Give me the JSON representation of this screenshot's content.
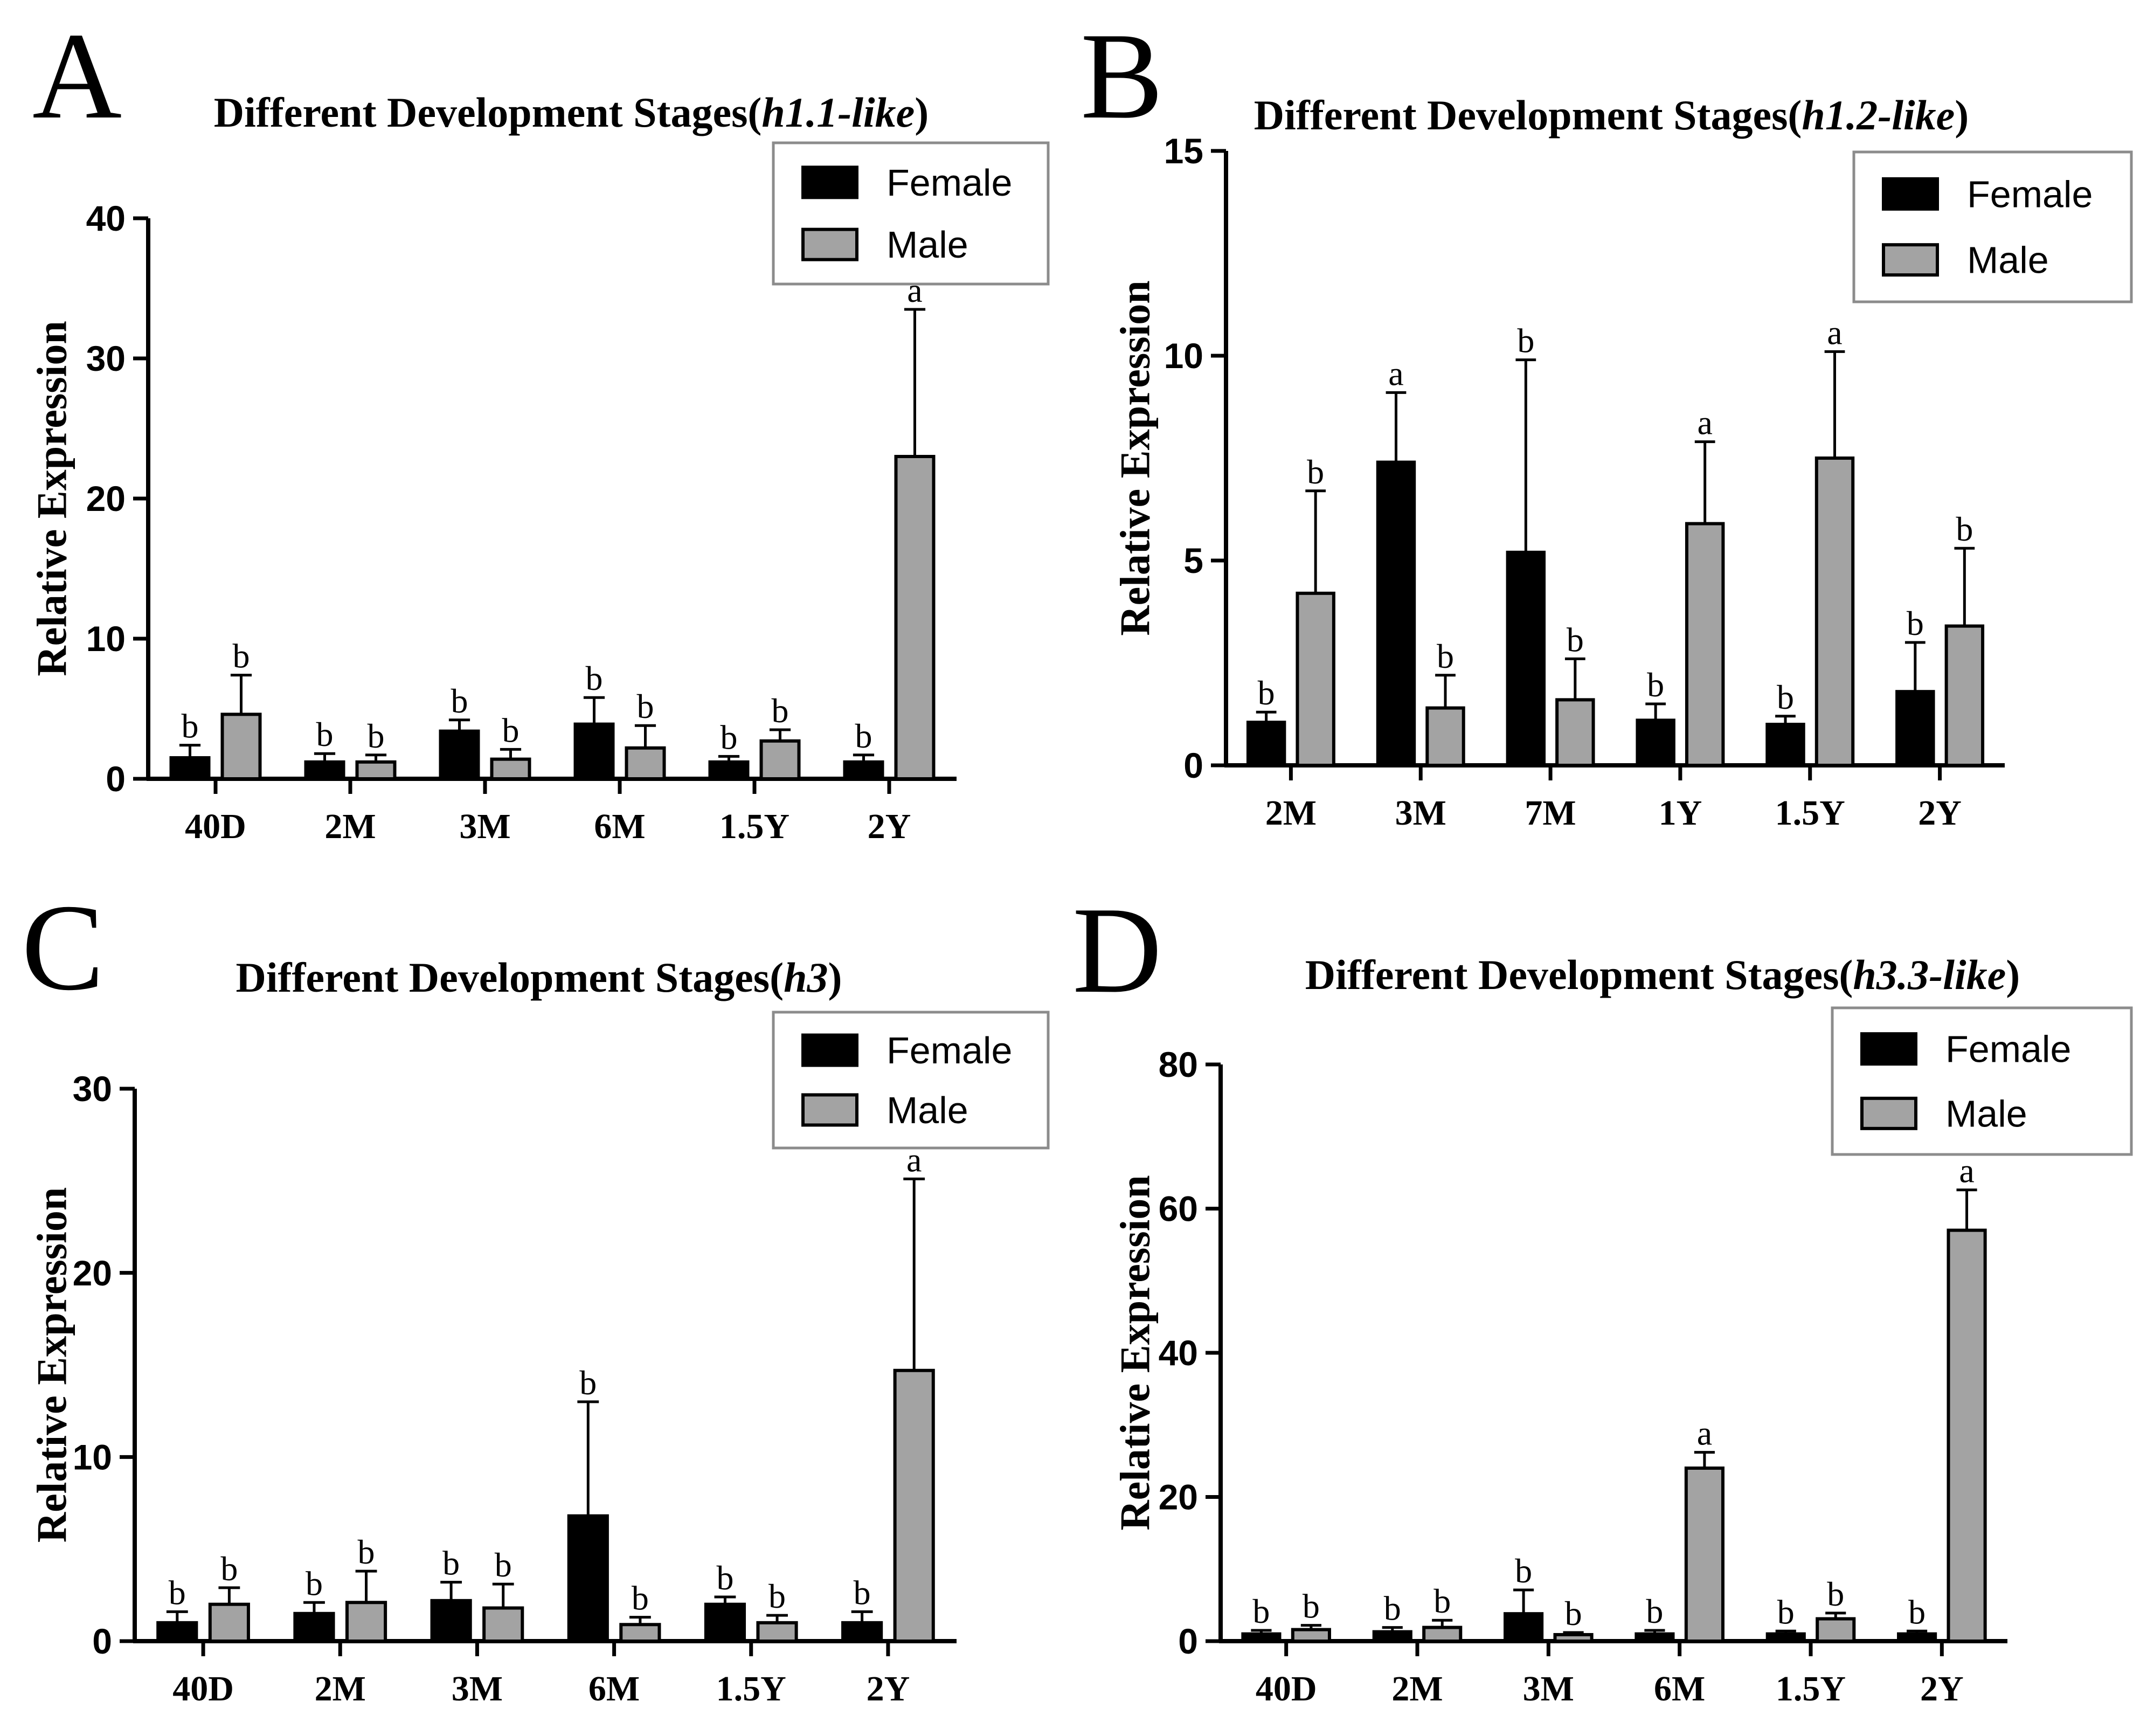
{
  "colors": {
    "female": "#000000",
    "male": "#a3a3a3",
    "axis": "#000000",
    "legend_border": "#8c8c8c"
  },
  "chart_data": [
    {
      "panel": "A",
      "type": "bar",
      "title": "Different Development Stages(",
      "title_italic": "h1.1-like",
      "title_end": ")",
      "ylabel": "Relative Expression",
      "ylim": [
        0,
        40
      ],
      "yticks": [
        "0",
        "10",
        "20",
        "30",
        "40"
      ],
      "categories": [
        "40D",
        "2M",
        "3M",
        "6M",
        "1.5Y",
        "2Y"
      ],
      "legend_position": "top-right",
      "series": [
        {
          "name": "Female",
          "values": [
            1.5,
            1.2,
            3.4,
            3.9,
            1.2,
            1.2
          ],
          "errors": [
            0.9,
            0.6,
            0.8,
            1.9,
            0.4,
            0.5
          ],
          "labels": [
            "b",
            "b",
            "b",
            "b",
            "b",
            "b"
          ]
        },
        {
          "name": "Male",
          "values": [
            4.6,
            1.2,
            1.4,
            2.2,
            2.7,
            23.0
          ],
          "errors": [
            2.8,
            0.5,
            0.7,
            1.6,
            0.8,
            10.5
          ],
          "labels": [
            "b",
            "b",
            "b",
            "b",
            "b",
            "a"
          ]
        }
      ]
    },
    {
      "panel": "B",
      "type": "bar",
      "title": "Different Development Stages(",
      "title_italic": "h1.2-like",
      "title_end": ")",
      "ylabel": "Relative Expression",
      "ylim": [
        0,
        15
      ],
      "yticks": [
        "0",
        "5",
        "10",
        "15"
      ],
      "categories": [
        "2M",
        "3M",
        "7M",
        "1Y",
        "1.5Y",
        "2Y"
      ],
      "legend_position": "top-right",
      "series": [
        {
          "name": "Female",
          "values": [
            1.05,
            7.4,
            5.2,
            1.1,
            1.0,
            1.8
          ],
          "errors": [
            0.25,
            1.7,
            4.7,
            0.4,
            0.2,
            1.2
          ],
          "labels": [
            "b",
            "a",
            "b",
            "b",
            "b",
            "b"
          ]
        },
        {
          "name": "Male",
          "values": [
            4.2,
            1.4,
            1.6,
            5.9,
            7.5,
            3.4
          ],
          "errors": [
            2.5,
            0.8,
            1.0,
            2.0,
            2.6,
            1.9
          ],
          "labels": [
            "b",
            "b",
            "b",
            "a",
            "a",
            "b"
          ]
        }
      ]
    },
    {
      "panel": "C",
      "type": "bar",
      "title": "Different Development Stages(",
      "title_italic": "h3",
      "title_end": ")",
      "ylabel": "Relative Expression",
      "ylim": [
        0,
        30
      ],
      "yticks": [
        "0",
        "10",
        "20",
        "30"
      ],
      "categories": [
        "40D",
        "2M",
        "3M",
        "6M",
        "1.5Y",
        "2Y"
      ],
      "legend_position": "top-right",
      "series": [
        {
          "name": "Female",
          "values": [
            1.0,
            1.5,
            2.2,
            6.8,
            2.0,
            1.0
          ],
          "errors": [
            0.6,
            0.6,
            1.0,
            6.2,
            0.4,
            0.6
          ],
          "labels": [
            "b",
            "b",
            "b",
            "b",
            "b",
            "b"
          ]
        },
        {
          "name": "Male",
          "values": [
            2.0,
            2.1,
            1.8,
            0.9,
            1.0,
            14.7
          ],
          "errors": [
            0.9,
            1.7,
            1.3,
            0.4,
            0.4,
            10.4
          ],
          "labels": [
            "b",
            "b",
            "b",
            "b",
            "b",
            "a"
          ]
        }
      ]
    },
    {
      "panel": "D",
      "type": "bar",
      "title": "Different Development Stages(",
      "title_italic": "h3.3-like",
      "title_end": ")",
      "ylabel": "Relative Expression",
      "ylim": [
        0,
        80
      ],
      "yticks": [
        "0",
        "20",
        "40",
        "60",
        "80"
      ],
      "categories": [
        "40D",
        "2M",
        "3M",
        "6M",
        "1.5Y",
        "2Y"
      ],
      "legend_position": "top-right",
      "series": [
        {
          "name": "Female",
          "values": [
            1.0,
            1.3,
            3.8,
            1.0,
            1.0,
            1.0
          ],
          "errors": [
            0.5,
            0.6,
            3.3,
            0.5,
            0.4,
            0.4
          ],
          "labels": [
            "b",
            "b",
            "b",
            "b",
            "b",
            "b"
          ]
        },
        {
          "name": "Male",
          "values": [
            1.6,
            1.9,
            0.9,
            24.0,
            3.1,
            57.0
          ],
          "errors": [
            0.6,
            1.0,
            0.3,
            2.2,
            0.8,
            5.6
          ],
          "labels": [
            "b",
            "b",
            "b",
            "a",
            "b",
            "a"
          ]
        }
      ]
    }
  ]
}
